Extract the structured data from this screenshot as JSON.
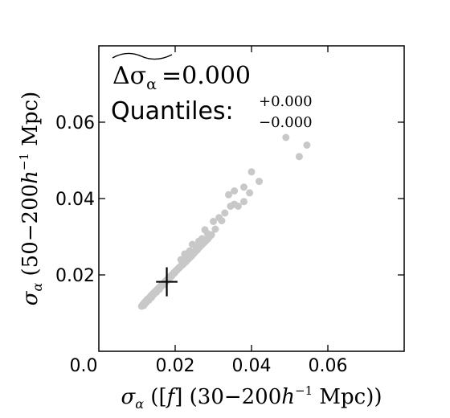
{
  "chart_data": {
    "type": "scatter",
    "xlabel_parts": [
      "σ",
      "α",
      " ([",
      "f",
      "]   (30−200",
      "h",
      "−1",
      " Mpc))"
    ],
    "ylabel_parts": [
      "σ",
      "α",
      " (50−200",
      "h",
      "−1",
      " Mpc)"
    ],
    "xlim": [
      0.0,
      0.08
    ],
    "ylim": [
      0.0,
      0.08
    ],
    "x_ticks": [
      0.02,
      0.04,
      0.06
    ],
    "x_tick_labels": [
      "0.02",
      "0.04",
      "0.06"
    ],
    "y_ticks": [
      0.02,
      0.04,
      0.06
    ],
    "y_tick_labels": [
      "0.02",
      "0.04",
      "0.06"
    ],
    "origin_label": "0.0",
    "grid": false,
    "point_color": "#c8c8c8",
    "marker_color": "#000000",
    "annotation": {
      "delta_symbol": "Δσ",
      "delta_subscript": "α",
      "delta_value": "=0.000",
      "quantiles_label": "Quantiles:",
      "quantiles_upper": "+0.000",
      "quantiles_lower": "−0.000"
    },
    "marker": {
      "x": 0.0178,
      "y": 0.0182,
      "xerr": 0.0028,
      "yerr": 0.0038
    },
    "points": [
      [
        0.0112,
        0.0118
      ],
      [
        0.0115,
        0.0122
      ],
      [
        0.0118,
        0.0125
      ],
      [
        0.012,
        0.0128
      ],
      [
        0.0122,
        0.013
      ],
      [
        0.0125,
        0.0133
      ],
      [
        0.0127,
        0.0136
      ],
      [
        0.013,
        0.0138
      ],
      [
        0.0132,
        0.014
      ],
      [
        0.0135,
        0.0143
      ],
      [
        0.0137,
        0.0146
      ],
      [
        0.014,
        0.0148
      ],
      [
        0.0142,
        0.0151
      ],
      [
        0.0145,
        0.0153
      ],
      [
        0.0147,
        0.0156
      ],
      [
        0.015,
        0.0158
      ],
      [
        0.0152,
        0.0161
      ],
      [
        0.0155,
        0.0163
      ],
      [
        0.0157,
        0.0166
      ],
      [
        0.016,
        0.0168
      ],
      [
        0.0162,
        0.0171
      ],
      [
        0.0165,
        0.0173
      ],
      [
        0.0167,
        0.0176
      ],
      [
        0.017,
        0.0178
      ],
      [
        0.0172,
        0.0181
      ],
      [
        0.0175,
        0.0183
      ],
      [
        0.0177,
        0.0186
      ],
      [
        0.018,
        0.0188
      ],
      [
        0.0182,
        0.0191
      ],
      [
        0.0185,
        0.0193
      ],
      [
        0.0187,
        0.0196
      ],
      [
        0.019,
        0.0198
      ],
      [
        0.0192,
        0.0201
      ],
      [
        0.0195,
        0.0203
      ],
      [
        0.0197,
        0.0206
      ],
      [
        0.02,
        0.0208
      ],
      [
        0.0202,
        0.0211
      ],
      [
        0.0205,
        0.0213
      ],
      [
        0.0207,
        0.0216
      ],
      [
        0.021,
        0.0218
      ],
      [
        0.0213,
        0.0221
      ],
      [
        0.0216,
        0.0224
      ],
      [
        0.0219,
        0.0226
      ],
      [
        0.0222,
        0.0229
      ],
      [
        0.0225,
        0.0232
      ],
      [
        0.0228,
        0.0235
      ],
      [
        0.0231,
        0.0238
      ],
      [
        0.0234,
        0.0241
      ],
      [
        0.0237,
        0.0244
      ],
      [
        0.024,
        0.0247
      ],
      [
        0.0243,
        0.025
      ],
      [
        0.0246,
        0.0253
      ],
      [
        0.0249,
        0.0257
      ],
      [
        0.0252,
        0.026
      ],
      [
        0.0255,
        0.0263
      ],
      [
        0.0258,
        0.0266
      ],
      [
        0.0261,
        0.027
      ],
      [
        0.0264,
        0.0273
      ],
      [
        0.0268,
        0.0277
      ],
      [
        0.0272,
        0.0281
      ],
      [
        0.0276,
        0.0285
      ],
      [
        0.028,
        0.0289
      ],
      [
        0.0285,
        0.0294
      ],
      [
        0.029,
        0.03
      ],
      [
        0.0295,
        0.0305
      ],
      [
        0.0118,
        0.012
      ],
      [
        0.0124,
        0.0128
      ],
      [
        0.0131,
        0.0134
      ],
      [
        0.0138,
        0.0141
      ],
      [
        0.0144,
        0.0149
      ],
      [
        0.0151,
        0.0155
      ],
      [
        0.0158,
        0.0162
      ],
      [
        0.0164,
        0.017
      ],
      [
        0.0171,
        0.0175
      ],
      [
        0.0178,
        0.0184
      ],
      [
        0.0184,
        0.019
      ],
      [
        0.0191,
        0.0197
      ],
      [
        0.0198,
        0.0205
      ],
      [
        0.0204,
        0.0212
      ],
      [
        0.0211,
        0.022
      ],
      [
        0.0218,
        0.0228
      ],
      [
        0.0224,
        0.0234
      ],
      [
        0.0231,
        0.0243
      ],
      [
        0.0238,
        0.025
      ],
      [
        0.0245,
        0.0257
      ],
      [
        0.0215,
        0.024
      ],
      [
        0.0225,
        0.0255
      ],
      [
        0.0238,
        0.0263
      ],
      [
        0.0245,
        0.028
      ],
      [
        0.0255,
        0.0272
      ],
      [
        0.0262,
        0.0288
      ],
      [
        0.027,
        0.0295
      ],
      [
        0.0278,
        0.0318
      ],
      [
        0.0285,
        0.0308
      ],
      [
        0.03,
        0.034
      ],
      [
        0.0305,
        0.032
      ],
      [
        0.0315,
        0.035
      ],
      [
        0.0322,
        0.0342
      ],
      [
        0.033,
        0.0362
      ],
      [
        0.0345,
        0.038
      ],
      [
        0.0355,
        0.0385
      ],
      [
        0.0365,
        0.038
      ],
      [
        0.038,
        0.0392
      ],
      [
        0.034,
        0.041
      ],
      [
        0.0355,
        0.042
      ],
      [
        0.038,
        0.043
      ],
      [
        0.04,
        0.047
      ],
      [
        0.0395,
        0.0415
      ],
      [
        0.042,
        0.0445
      ],
      [
        0.049,
        0.056
      ],
      [
        0.0525,
        0.051
      ],
      [
        0.0545,
        0.054
      ]
    ]
  }
}
